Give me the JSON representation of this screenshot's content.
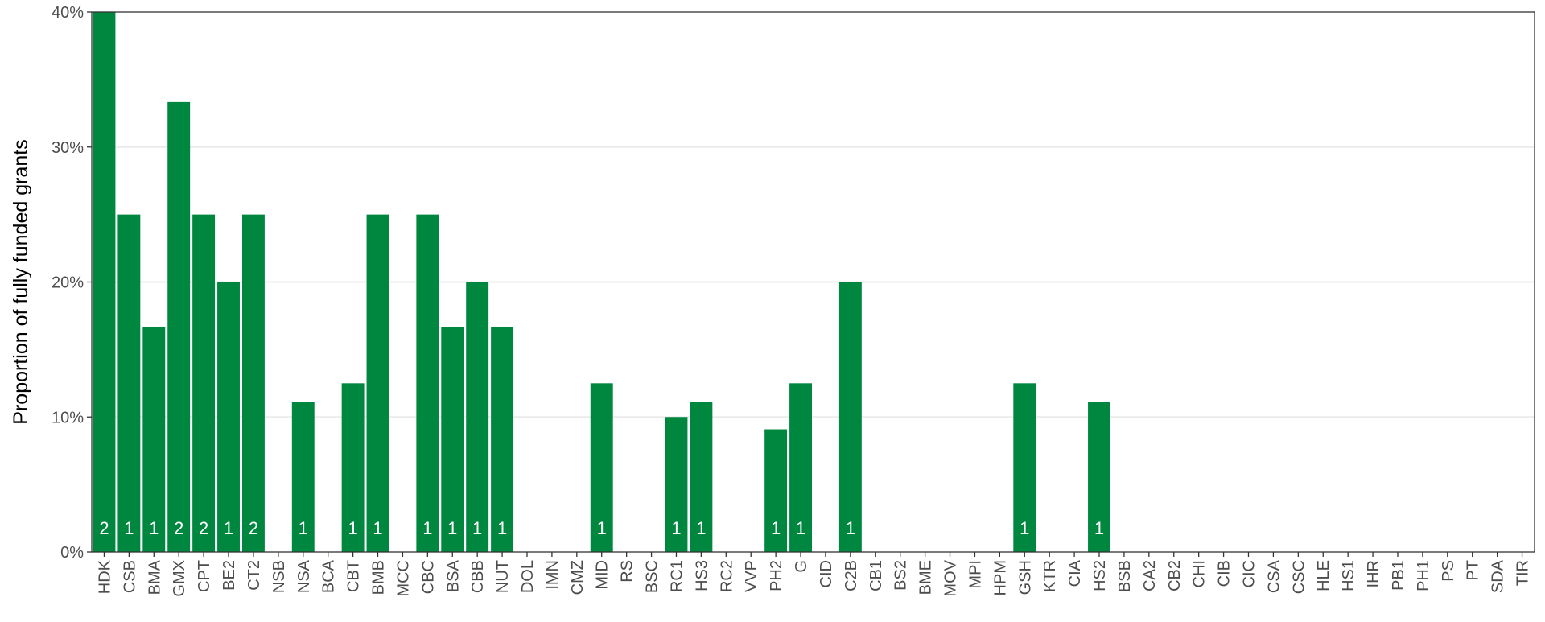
{
  "chart_data": {
    "type": "bar",
    "title": "",
    "xlabel": "",
    "ylabel": "Proportion of fully funded grants",
    "ylim": [
      0,
      0.4
    ],
    "y_ticks": [
      0,
      0.1,
      0.2,
      0.3,
      0.4
    ],
    "y_tick_labels": [
      "0%",
      "10%",
      "20%",
      "30%",
      "40%"
    ],
    "grid": true,
    "legend": "none",
    "bar_color": "#00873f",
    "categories": [
      "HDK",
      "CSB",
      "BMA",
      "GMX",
      "CPT",
      "BE2",
      "CT2",
      "NSB",
      "NSA",
      "BCA",
      "CBT",
      "BMB",
      "MCC",
      "CBC",
      "BSA",
      "CBB",
      "NUT",
      "DOL",
      "IMN",
      "CMZ",
      "MID",
      "RS",
      "BSC",
      "RC1",
      "HS3",
      "RC2",
      "VVP",
      "PH2",
      "G",
      "CID",
      "C2B",
      "CB1",
      "BS2",
      "BME",
      "MOV",
      "MPI",
      "HPM",
      "GSH",
      "KTR",
      "CIA",
      "HS2",
      "BSB",
      "CA2",
      "CB2",
      "CHI",
      "CIB",
      "CIC",
      "CSA",
      "CSC",
      "HLE",
      "HS1",
      "IHR",
      "PB1",
      "PH1",
      "PS",
      "PT",
      "SDA",
      "TIR"
    ],
    "values": [
      0.4,
      0.25,
      0.1667,
      0.3333,
      0.25,
      0.2,
      0.25,
      0,
      0.1111,
      0,
      0.125,
      0.25,
      0,
      0.25,
      0.1667,
      0.2,
      0.1667,
      0,
      0,
      0,
      0.125,
      0,
      0,
      0.1,
      0.1111,
      0,
      0,
      0.0909,
      0.125,
      0,
      0.2,
      0,
      0,
      0,
      0,
      0,
      0,
      0.125,
      0,
      0,
      0.1111,
      0,
      0,
      0,
      0,
      0,
      0,
      0,
      0,
      0,
      0,
      0,
      0,
      0,
      0,
      0,
      0,
      0
    ],
    "counts": [
      "2",
      "1",
      "1",
      "2",
      "2",
      "1",
      "2",
      "",
      "1",
      "",
      "1",
      "1",
      "",
      "1",
      "1",
      "1",
      "1",
      "",
      "",
      "",
      "1",
      "",
      "",
      "1",
      "1",
      "",
      "",
      "1",
      "1",
      "",
      "1",
      "",
      "",
      "",
      "",
      "",
      "",
      "1",
      "",
      "",
      "1",
      "",
      "",
      "",
      "",
      "",
      "",
      "",
      "",
      "",
      "",
      "",
      "",
      "",
      "",
      "",
      "",
      ""
    ]
  }
}
